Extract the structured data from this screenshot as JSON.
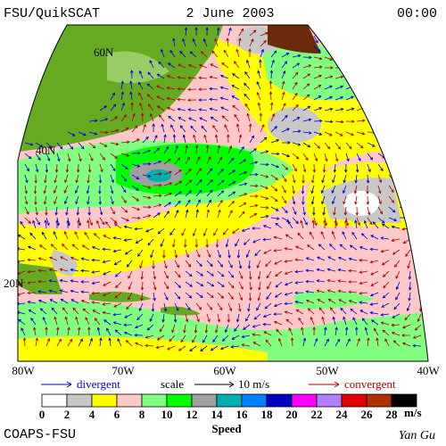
{
  "header": {
    "left": "FSU/QuikSCAT",
    "center": "2 June 2003",
    "right": "00:00"
  },
  "map": {
    "lat_labels": [
      "60N",
      "40N",
      "20N"
    ],
    "lon_labels": [
      "80W",
      "70W",
      "60W",
      "50W",
      "40W"
    ]
  },
  "legend": {
    "divergent": "divergent",
    "scale": "scale",
    "scale_value": "10 m/s",
    "convergent": "convergent"
  },
  "colorbar": {
    "ticks": [
      0,
      2,
      4,
      6,
      8,
      10,
      12,
      14,
      16,
      18,
      20,
      22,
      24,
      26,
      28
    ],
    "colors": [
      "#ffffff",
      "#c8c8c8",
      "#ffff00",
      "#ffc8c8",
      "#80ff80",
      "#00ff00",
      "#a0a0a0",
      "#00b0b0",
      "#0080ff",
      "#0000c0",
      "#ff00ff",
      "#b080ff",
      "#e00000",
      "#b03000",
      "#000000"
    ],
    "unit": "m/s",
    "title": "Speed"
  },
  "footer": {
    "left": "COAPS-FSU",
    "right": "Yan Gu"
  }
}
